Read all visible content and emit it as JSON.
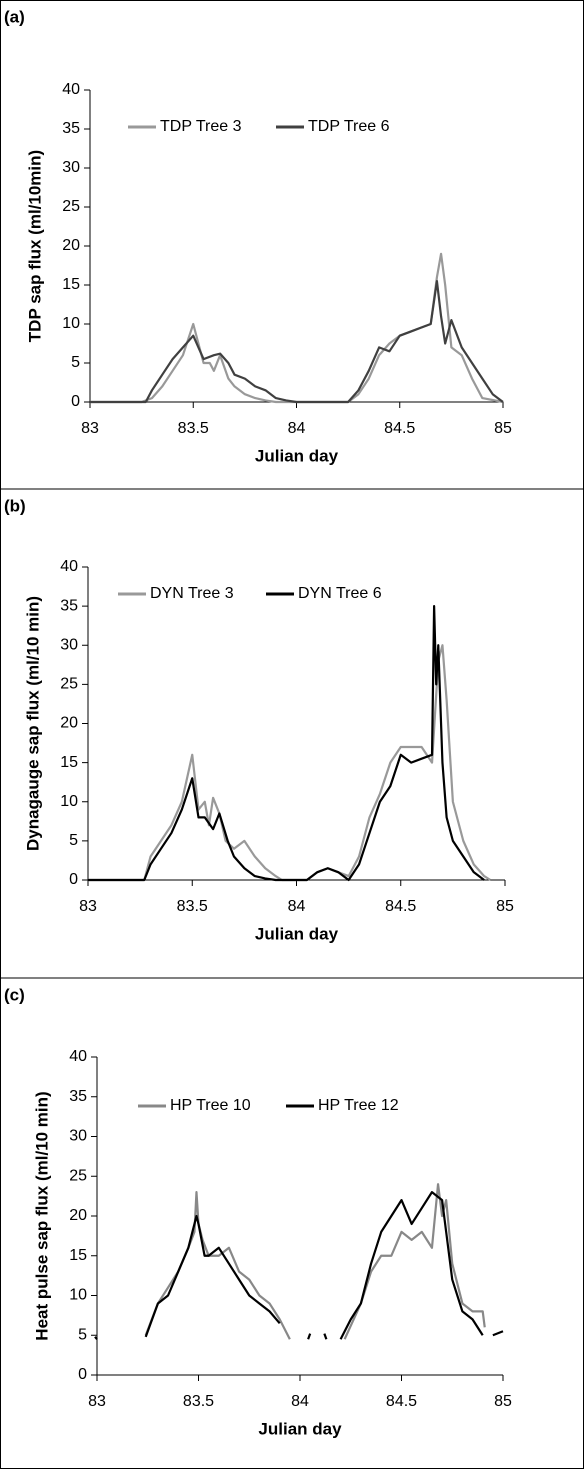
{
  "chart_data": [
    {
      "type": "line",
      "label": "(a)",
      "x_label": "Julian day",
      "y_label": "TDP sap flux (ml/10min)",
      "xlim": [
        83,
        85
      ],
      "xticks": [
        83,
        83.5,
        84,
        84.5,
        85
      ],
      "ylim": [
        0,
        40
      ],
      "yticks": [
        0,
        5,
        10,
        15,
        20,
        25,
        30,
        35,
        40
      ],
      "series": [
        {
          "name": "TDP Tree 3",
          "color": "#999999",
          "x": [
            83,
            83.25,
            83.3,
            83.35,
            83.4,
            83.45,
            83.5,
            83.52,
            83.55,
            83.58,
            83.6,
            83.63,
            83.67,
            83.7,
            83.75,
            83.8,
            83.85,
            83.9,
            84,
            84.25,
            84.3,
            84.35,
            84.4,
            84.45,
            84.5,
            84.55,
            84.6,
            84.65,
            84.68,
            84.7,
            84.72,
            84.75,
            84.8,
            84.85,
            84.9,
            85
          ],
          "values": [
            0,
            0,
            0.5,
            2,
            4,
            6,
            10,
            8,
            5,
            5,
            4,
            6,
            3,
            2,
            1,
            0.5,
            0.2,
            0,
            0,
            0,
            1,
            3,
            6,
            7.5,
            8.5,
            9,
            9.5,
            10,
            16,
            19,
            15,
            7,
            6,
            3,
            0.5,
            0
          ]
        },
        {
          "name": "TDP Tree 6",
          "color": "#404040",
          "x": [
            83,
            83.27,
            83.3,
            83.35,
            83.4,
            83.45,
            83.5,
            83.55,
            83.6,
            83.63,
            83.67,
            83.7,
            83.75,
            83.8,
            83.85,
            83.9,
            83.95,
            84,
            84.25,
            84.3,
            84.35,
            84.4,
            84.45,
            84.5,
            84.55,
            84.6,
            84.65,
            84.68,
            84.7,
            84.72,
            84.75,
            84.8,
            84.85,
            84.9,
            84.95,
            85
          ],
          "values": [
            0,
            0,
            1.5,
            3.5,
            5.5,
            7,
            8.5,
            5.5,
            6,
            6.2,
            5,
            3.5,
            3,
            2,
            1.5,
            0.5,
            0.2,
            0,
            0,
            1.5,
            4,
            7,
            6.5,
            8.5,
            9,
            9.5,
            10,
            15.5,
            11,
            7.5,
            10.5,
            7,
            5,
            3,
            1,
            0
          ]
        }
      ]
    },
    {
      "type": "line",
      "label": "(b)",
      "x_label": "Julian day",
      "y_label": "Dynagauge sap flux (ml/10 min)",
      "xlim": [
        83,
        85
      ],
      "xticks": [
        83,
        83.5,
        84,
        84.5,
        85
      ],
      "ylim": [
        0,
        40
      ],
      "yticks": [
        0,
        5,
        10,
        15,
        20,
        25,
        30,
        35,
        40
      ],
      "series": [
        {
          "name": "DYN Tree 3",
          "color": "#999999",
          "x": [
            83,
            83.27,
            83.3,
            83.35,
            83.4,
            83.45,
            83.5,
            83.53,
            83.56,
            83.58,
            83.6,
            83.63,
            83.66,
            83.7,
            83.75,
            83.8,
            83.85,
            83.9,
            83.93,
            84.05,
            84.1,
            84.15,
            84.2,
            84.25,
            84.3,
            84.35,
            84.4,
            84.45,
            84.5,
            84.55,
            84.6,
            84.65,
            84.68,
            84.7,
            84.72,
            84.75,
            84.8,
            84.85,
            84.9,
            84.93
          ],
          "values": [
            0,
            0,
            3,
            5,
            7,
            10,
            16,
            9,
            10,
            7,
            10.5,
            8.5,
            5,
            4,
            5,
            3,
            1.5,
            0.5,
            0,
            0,
            1,
            1.5,
            1,
            0.5,
            3,
            8,
            11,
            15,
            17,
            17,
            17,
            15,
            28,
            30,
            23,
            10,
            5,
            2,
            0.5,
            0
          ]
        },
        {
          "name": "DYN Tree 6",
          "color": "#000000",
          "x": [
            83,
            83.27,
            83.3,
            83.35,
            83.4,
            83.45,
            83.5,
            83.53,
            83.56,
            83.6,
            83.63,
            83.67,
            83.7,
            83.75,
            83.8,
            83.85,
            83.9,
            84.05,
            84.1,
            84.15,
            84.2,
            84.25,
            84.3,
            84.35,
            84.4,
            84.45,
            84.5,
            84.55,
            84.6,
            84.65,
            84.66,
            84.67,
            84.68,
            84.7,
            84.72,
            84.75,
            84.8,
            84.85,
            84.9
          ],
          "values": [
            0,
            0,
            2,
            4,
            6,
            9,
            13,
            8,
            8,
            6.5,
            8.5,
            5,
            3,
            1.5,
            0.5,
            0.2,
            0,
            0,
            1,
            1.5,
            1,
            0,
            2,
            6,
            10,
            12,
            16,
            15,
            15.5,
            16,
            35,
            25,
            30,
            15,
            8,
            5,
            3,
            1,
            0
          ]
        }
      ]
    },
    {
      "type": "line",
      "label": "(c)",
      "x_label": "Julian day",
      "y_label": "Heat pulse sap flux (ml/10 min)",
      "xlim": [
        83,
        85
      ],
      "xticks": [
        83,
        83.5,
        84,
        84.5,
        85
      ],
      "ylim": [
        0,
        40
      ],
      "yticks": [
        0,
        5,
        10,
        15,
        20,
        25,
        30,
        35,
        40
      ],
      "series": [
        {
          "name": "HP Tree 10",
          "color": "#888888",
          "x": [
            83.24,
            83.3,
            83.35,
            83.4,
            83.45,
            83.48,
            83.49,
            83.5,
            83.52,
            83.55,
            83.6,
            83.65,
            83.7,
            83.75,
            83.8,
            83.85,
            83.9,
            83.95,
            84.1,
            84.22,
            84.3,
            84.35,
            84.4,
            84.45,
            84.5,
            84.55,
            84.6,
            84.65,
            84.68,
            84.7,
            84.72,
            84.75,
            84.8,
            84.85,
            84.9,
            84.91
          ],
          "values": [
            5,
            9,
            11,
            13,
            16,
            18,
            23,
            19,
            17,
            15,
            15,
            16,
            13,
            12,
            10,
            9,
            7,
            4.5,
            null,
            4.5,
            9,
            13,
            15,
            15,
            18,
            17,
            18,
            16,
            24,
            20,
            22,
            14,
            9,
            8,
            8,
            6
          ]
        },
        {
          "name": "HP Tree 12",
          "color": "#000000",
          "x": [
            82.99,
            83.0,
            83.1,
            83.24,
            83.3,
            83.35,
            83.4,
            83.45,
            83.49,
            83.5,
            83.53,
            83.55,
            83.6,
            83.65,
            83.7,
            83.75,
            83.8,
            83.85,
            83.9,
            84.0,
            84.04,
            84.05,
            84.08,
            84.12,
            84.13,
            84.16,
            84.2,
            84.25,
            84.3,
            84.35,
            84.4,
            84.45,
            84.5,
            84.55,
            84.6,
            84.65,
            84.7,
            84.72,
            84.75,
            84.8,
            84.85,
            84.9,
            84.93,
            84.95,
            85
          ],
          "values": [
            4.8,
            4.5,
            null,
            4.8,
            9,
            10,
            13,
            16,
            20,
            19,
            15,
            15,
            16,
            14,
            12,
            10,
            9,
            8,
            6.5,
            null,
            4.5,
            5.2,
            null,
            5.2,
            4.5,
            null,
            4.5,
            7,
            9,
            14,
            18,
            20,
            22,
            19,
            21,
            23,
            22,
            18,
            12,
            8,
            7,
            5,
            null,
            5,
            5.5
          ]
        }
      ]
    }
  ]
}
